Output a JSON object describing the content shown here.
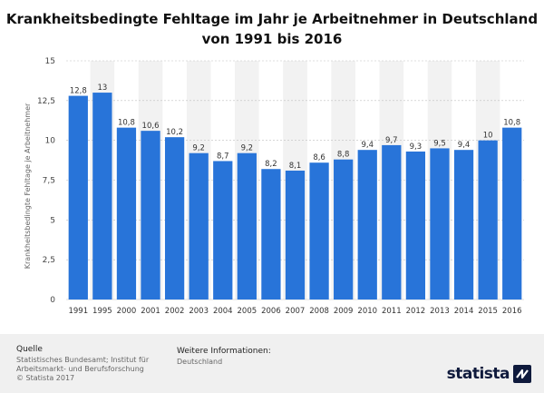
{
  "title_line1": "Krankheitsbedingte Fehltage im Jahr je Arbeitnehmer in Deutschland",
  "title_line2": "von 1991 bis 2016",
  "footer": {
    "source_heading": "Quelle",
    "source_line1": "Statistisches Bundesamt; Institut für",
    "source_line2": "Arbeitsmarkt- und Berufsforschung",
    "source_line3": "© Statista 2017",
    "info_heading": "Weitere Informationen:",
    "info_value": "Deutschland",
    "logo": "statista"
  },
  "colors": {
    "bar": "#2874d9",
    "alt_band": "#f2f2f2",
    "grid": "#bfbfbf"
  },
  "chart_data": {
    "type": "bar",
    "title": "Krankheitsbedingte Fehltage im Jahr je Arbeitnehmer in Deutschland von 1991 bis 2016",
    "ylabel": "Krankheitsbedingte Fehltage je Arbeitnehmer",
    "xlabel": "",
    "ylim": [
      0,
      15
    ],
    "yticks": [
      0,
      2.5,
      5,
      7.5,
      10,
      12.5,
      15
    ],
    "ytick_labels": [
      "0",
      "2,5",
      "5",
      "7,5",
      "10",
      "12,5",
      "15"
    ],
    "grid": true,
    "categories": [
      "1991",
      "1995",
      "2000",
      "2001",
      "2002",
      "2003",
      "2004",
      "2005",
      "2006",
      "2007",
      "2008",
      "2009",
      "2010",
      "2011",
      "2012",
      "2013",
      "2014",
      "2015",
      "2016"
    ],
    "values": [
      12.8,
      13,
      10.8,
      10.6,
      10.2,
      9.2,
      8.7,
      9.2,
      8.2,
      8.1,
      8.6,
      8.8,
      9.4,
      9.7,
      9.3,
      9.5,
      9.4,
      10,
      10.8
    ],
    "value_labels": [
      "12,8",
      "13",
      "10,8",
      "10,6",
      "10,2",
      "9,2",
      "8,7",
      "9,2",
      "8,2",
      "8,1",
      "8,6",
      "8,8",
      "9,4",
      "9,7",
      "9,3",
      "9,5",
      "9,4",
      "10",
      "10,8"
    ]
  }
}
